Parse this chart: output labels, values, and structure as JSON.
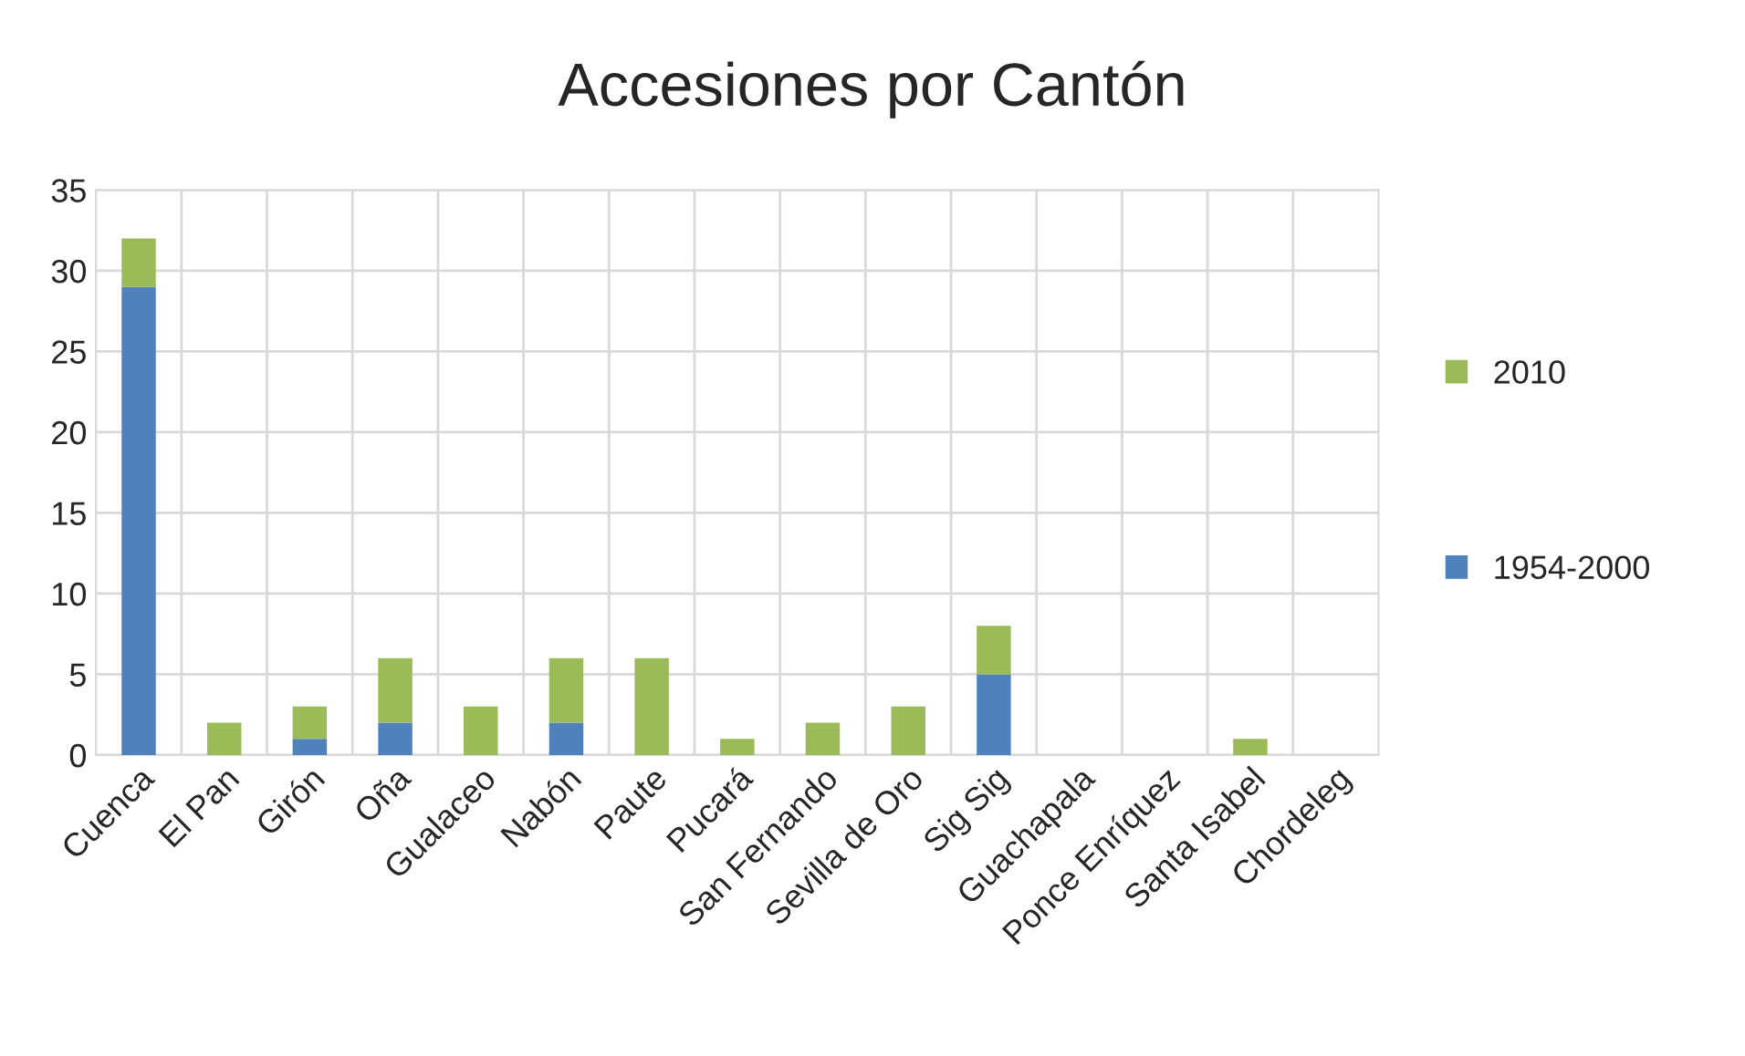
{
  "chart_data": {
    "type": "bar",
    "title": "Accesiones por Cantón",
    "stacked": true,
    "categories": [
      "Cuenca",
      "El Pan",
      "Girón",
      "Oña",
      "Gualaceo",
      "Nabón",
      "Paute",
      "Pucará",
      "San Fernando",
      "Sevilla de Oro",
      "Sig Sig",
      "Guachapala",
      "Ponce Enríquez",
      "Santa Isabel",
      "Chordeleg"
    ],
    "series": [
      {
        "name": "1954-2000",
        "color": "#4f81bd",
        "values": [
          29,
          0,
          1,
          2,
          0,
          2,
          0,
          0,
          0,
          0,
          5,
          0,
          0,
          0,
          0
        ]
      },
      {
        "name": "2010",
        "color": "#9bbb59",
        "values": [
          3,
          2,
          2,
          4,
          3,
          4,
          6,
          1,
          2,
          3,
          3,
          0,
          0,
          1,
          0
        ]
      }
    ],
    "ylim": [
      0,
      35
    ],
    "yticks": [
      0,
      5,
      10,
      15,
      20,
      25,
      30,
      35
    ],
    "grid": true,
    "legend": "right"
  }
}
